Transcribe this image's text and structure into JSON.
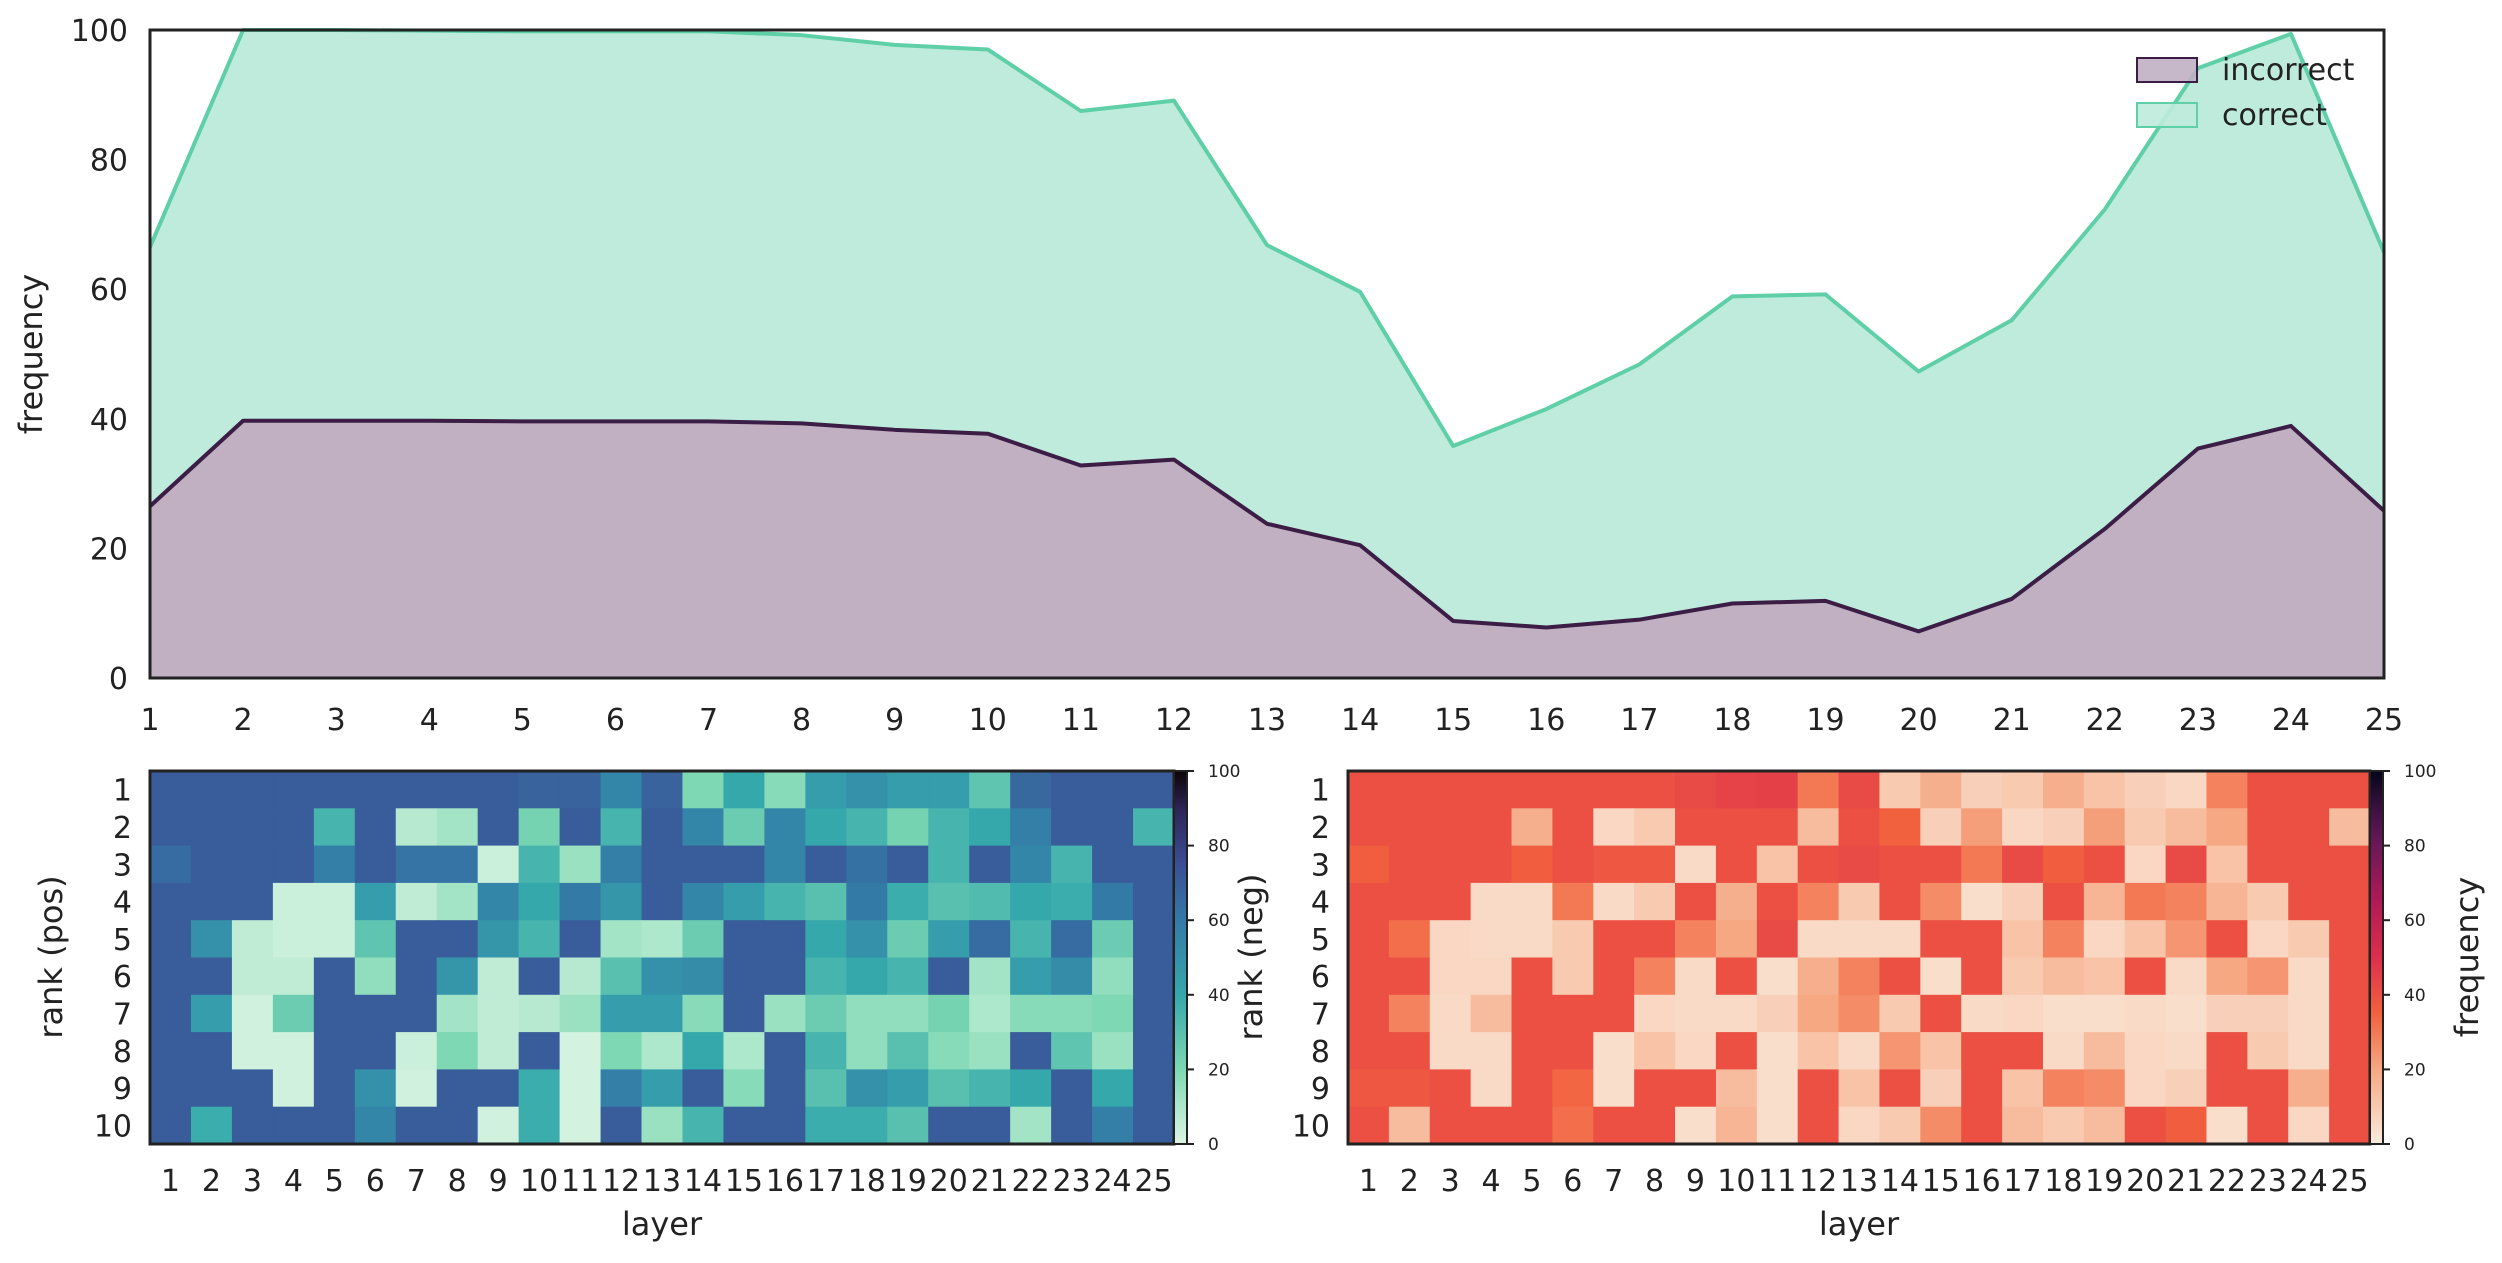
{
  "chart_data": [
    {
      "type": "area",
      "stacked": false,
      "ylabel": "frequency",
      "ylim": [
        0,
        100
      ],
      "yticks": [
        0,
        20,
        40,
        60,
        80,
        100
      ],
      "x": [
        1,
        2,
        3,
        4,
        5,
        6,
        7,
        8,
        9,
        10,
        11,
        12,
        13,
        14,
        15,
        16,
        17,
        18,
        19,
        20,
        21,
        22,
        23,
        24,
        25
      ],
      "xlim": [
        1,
        25
      ],
      "legend_position": "top-right",
      "series": [
        {
          "name": "incorrect",
          "color": "#3b1d45",
          "fill": "#c0b0c2",
          "values": [
            26.5,
            39.7,
            39.7,
            39.7,
            39.6,
            39.6,
            39.6,
            39.3,
            38.3,
            37.7,
            32.8,
            33.7,
            23.8,
            20.5,
            8.8,
            7.8,
            9.0,
            11.5,
            11.9,
            7.2,
            12.2,
            23.0,
            35.4,
            38.9,
            25.8
          ]
        },
        {
          "name": "correct",
          "color": "#5ecfa6",
          "fill": "#beebdc",
          "values": [
            66.5,
            100,
            100,
            99.9,
            99.8,
            99.8,
            99.8,
            99.2,
            97.7,
            97.0,
            87.5,
            89.1,
            66.8,
            59.6,
            35.8,
            41.5,
            48.4,
            58.9,
            59.2,
            47.3,
            55.2,
            72.3,
            94.1,
            99.4,
            65.7
          ]
        }
      ]
    },
    {
      "type": "heatmap",
      "xlabel": "layer",
      "ylabel": "rank (pos)",
      "colorbar_label": "",
      "cmap": "mako_r",
      "vmin": 0,
      "vmax": 100,
      "colorbar_ticks": [
        0,
        20,
        40,
        60,
        80,
        100
      ],
      "x": [
        1,
        2,
        3,
        4,
        5,
        6,
        7,
        8,
        9,
        10,
        11,
        12,
        13,
        14,
        15,
        16,
        17,
        18,
        19,
        20,
        21,
        22,
        23,
        24,
        25
      ],
      "y": [
        1,
        2,
        3,
        4,
        5,
        6,
        7,
        8,
        9,
        10
      ],
      "values": [
        [
          70,
          70,
          70,
          70,
          70,
          70,
          70,
          70,
          70,
          68,
          68,
          55,
          68,
          20,
          40,
          18,
          45,
          50,
          45,
          45,
          28,
          66,
          70,
          70,
          70
        ],
        [
          70,
          70,
          70,
          70,
          35,
          70,
          8,
          12,
          70,
          22,
          70,
          35,
          70,
          55,
          25,
          55,
          40,
          35,
          22,
          35,
          40,
          58,
          70,
          70,
          35
        ],
        [
          65,
          70,
          70,
          70,
          58,
          70,
          62,
          62,
          4,
          35,
          14,
          58,
          70,
          70,
          70,
          55,
          70,
          63,
          70,
          35,
          70,
          55,
          35,
          70,
          70
        ],
        [
          70,
          70,
          70,
          4,
          4,
          45,
          6,
          12,
          55,
          40,
          60,
          48,
          70,
          55,
          45,
          35,
          30,
          60,
          38,
          30,
          32,
          40,
          38,
          60,
          70
        ],
        [
          70,
          50,
          6,
          4,
          4,
          28,
          70,
          70,
          48,
          35,
          70,
          12,
          10,
          25,
          70,
          70,
          40,
          50,
          25,
          45,
          65,
          35,
          65,
          25,
          70
        ],
        [
          70,
          70,
          6,
          6,
          70,
          16,
          70,
          48,
          6,
          70,
          8,
          30,
          50,
          52,
          70,
          70,
          35,
          40,
          35,
          70,
          12,
          45,
          52,
          16,
          70
        ],
        [
          70,
          45,
          3,
          25,
          70,
          70,
          70,
          12,
          6,
          8,
          14,
          45,
          45,
          18,
          70,
          14,
          25,
          16,
          16,
          22,
          10,
          18,
          18,
          20,
          70
        ],
        [
          70,
          70,
          3,
          3,
          70,
          70,
          4,
          20,
          6,
          70,
          2,
          20,
          10,
          40,
          10,
          70,
          35,
          16,
          30,
          18,
          14,
          70,
          28,
          14,
          70
        ],
        [
          70,
          70,
          70,
          3,
          70,
          50,
          3,
          70,
          70,
          38,
          2,
          58,
          45,
          70,
          18,
          70,
          30,
          50,
          45,
          30,
          35,
          40,
          70,
          40,
          70
        ],
        [
          70,
          38,
          70,
          70,
          70,
          55,
          70,
          70,
          3,
          38,
          2,
          70,
          14,
          35,
          70,
          70,
          38,
          38,
          30,
          70,
          70,
          12,
          70,
          58,
          70
        ]
      ]
    },
    {
      "type": "heatmap",
      "xlabel": "layer",
      "ylabel": "rank (neg)",
      "colorbar_label": "frequency",
      "cmap": "rocket_r",
      "vmin": 0,
      "vmax": 100,
      "colorbar_ticks": [
        0,
        20,
        40,
        60,
        80,
        100
      ],
      "x": [
        1,
        2,
        3,
        4,
        5,
        6,
        7,
        8,
        9,
        10,
        11,
        12,
        13,
        14,
        15,
        16,
        17,
        18,
        19,
        20,
        21,
        22,
        23,
        24,
        25
      ],
      "y": [
        1,
        2,
        3,
        4,
        5,
        6,
        7,
        8,
        9,
        10
      ],
      "values": [
        [
          40,
          40,
          40,
          40,
          40,
          40,
          40,
          40,
          42,
          44,
          45,
          30,
          42,
          10,
          18,
          8,
          10,
          18,
          12,
          8,
          6,
          28,
          40,
          40,
          40
        ],
        [
          40,
          40,
          40,
          40,
          18,
          40,
          6,
          10,
          40,
          40,
          40,
          14,
          40,
          35,
          8,
          22,
          6,
          8,
          22,
          10,
          14,
          20,
          40,
          40,
          14
        ],
        [
          36,
          40,
          40,
          40,
          36,
          40,
          38,
          38,
          5,
          40,
          12,
          40,
          42,
          40,
          40,
          30,
          42,
          36,
          40,
          6,
          42,
          12,
          40,
          40,
          40
        ],
        [
          40,
          40,
          40,
          5,
          5,
          30,
          5,
          10,
          40,
          18,
          40,
          28,
          10,
          40,
          26,
          4,
          8,
          40,
          16,
          30,
          28,
          16,
          10,
          40,
          40
        ],
        [
          40,
          32,
          6,
          5,
          5,
          10,
          40,
          40,
          28,
          20,
          42,
          5,
          5,
          5,
          40,
          40,
          12,
          28,
          6,
          12,
          24,
          40,
          6,
          10,
          40
        ],
        [
          40,
          40,
          6,
          6,
          40,
          10,
          40,
          28,
          5,
          40,
          4,
          18,
          28,
          40,
          4,
          40,
          10,
          14,
          12,
          40,
          5,
          20,
          24,
          5,
          40
        ],
        [
          40,
          28,
          5,
          14,
          40,
          40,
          40,
          6,
          5,
          5,
          8,
          20,
          26,
          10,
          40,
          5,
          6,
          4,
          4,
          5,
          4,
          8,
          8,
          5,
          40
        ],
        [
          40,
          40,
          5,
          5,
          40,
          40,
          4,
          12,
          6,
          40,
          4,
          12,
          5,
          24,
          12,
          40,
          40,
          5,
          14,
          6,
          5,
          40,
          10,
          5,
          40
        ],
        [
          38,
          38,
          40,
          5,
          40,
          34,
          4,
          40,
          40,
          14,
          4,
          40,
          12,
          40,
          8,
          40,
          12,
          28,
          26,
          6,
          8,
          40,
          40,
          18,
          40
        ],
        [
          40,
          14,
          40,
          40,
          40,
          32,
          40,
          40,
          4,
          16,
          4,
          40,
          6,
          10,
          26,
          40,
          14,
          10,
          14,
          40,
          36,
          4,
          40,
          6,
          40
        ]
      ]
    }
  ]
}
